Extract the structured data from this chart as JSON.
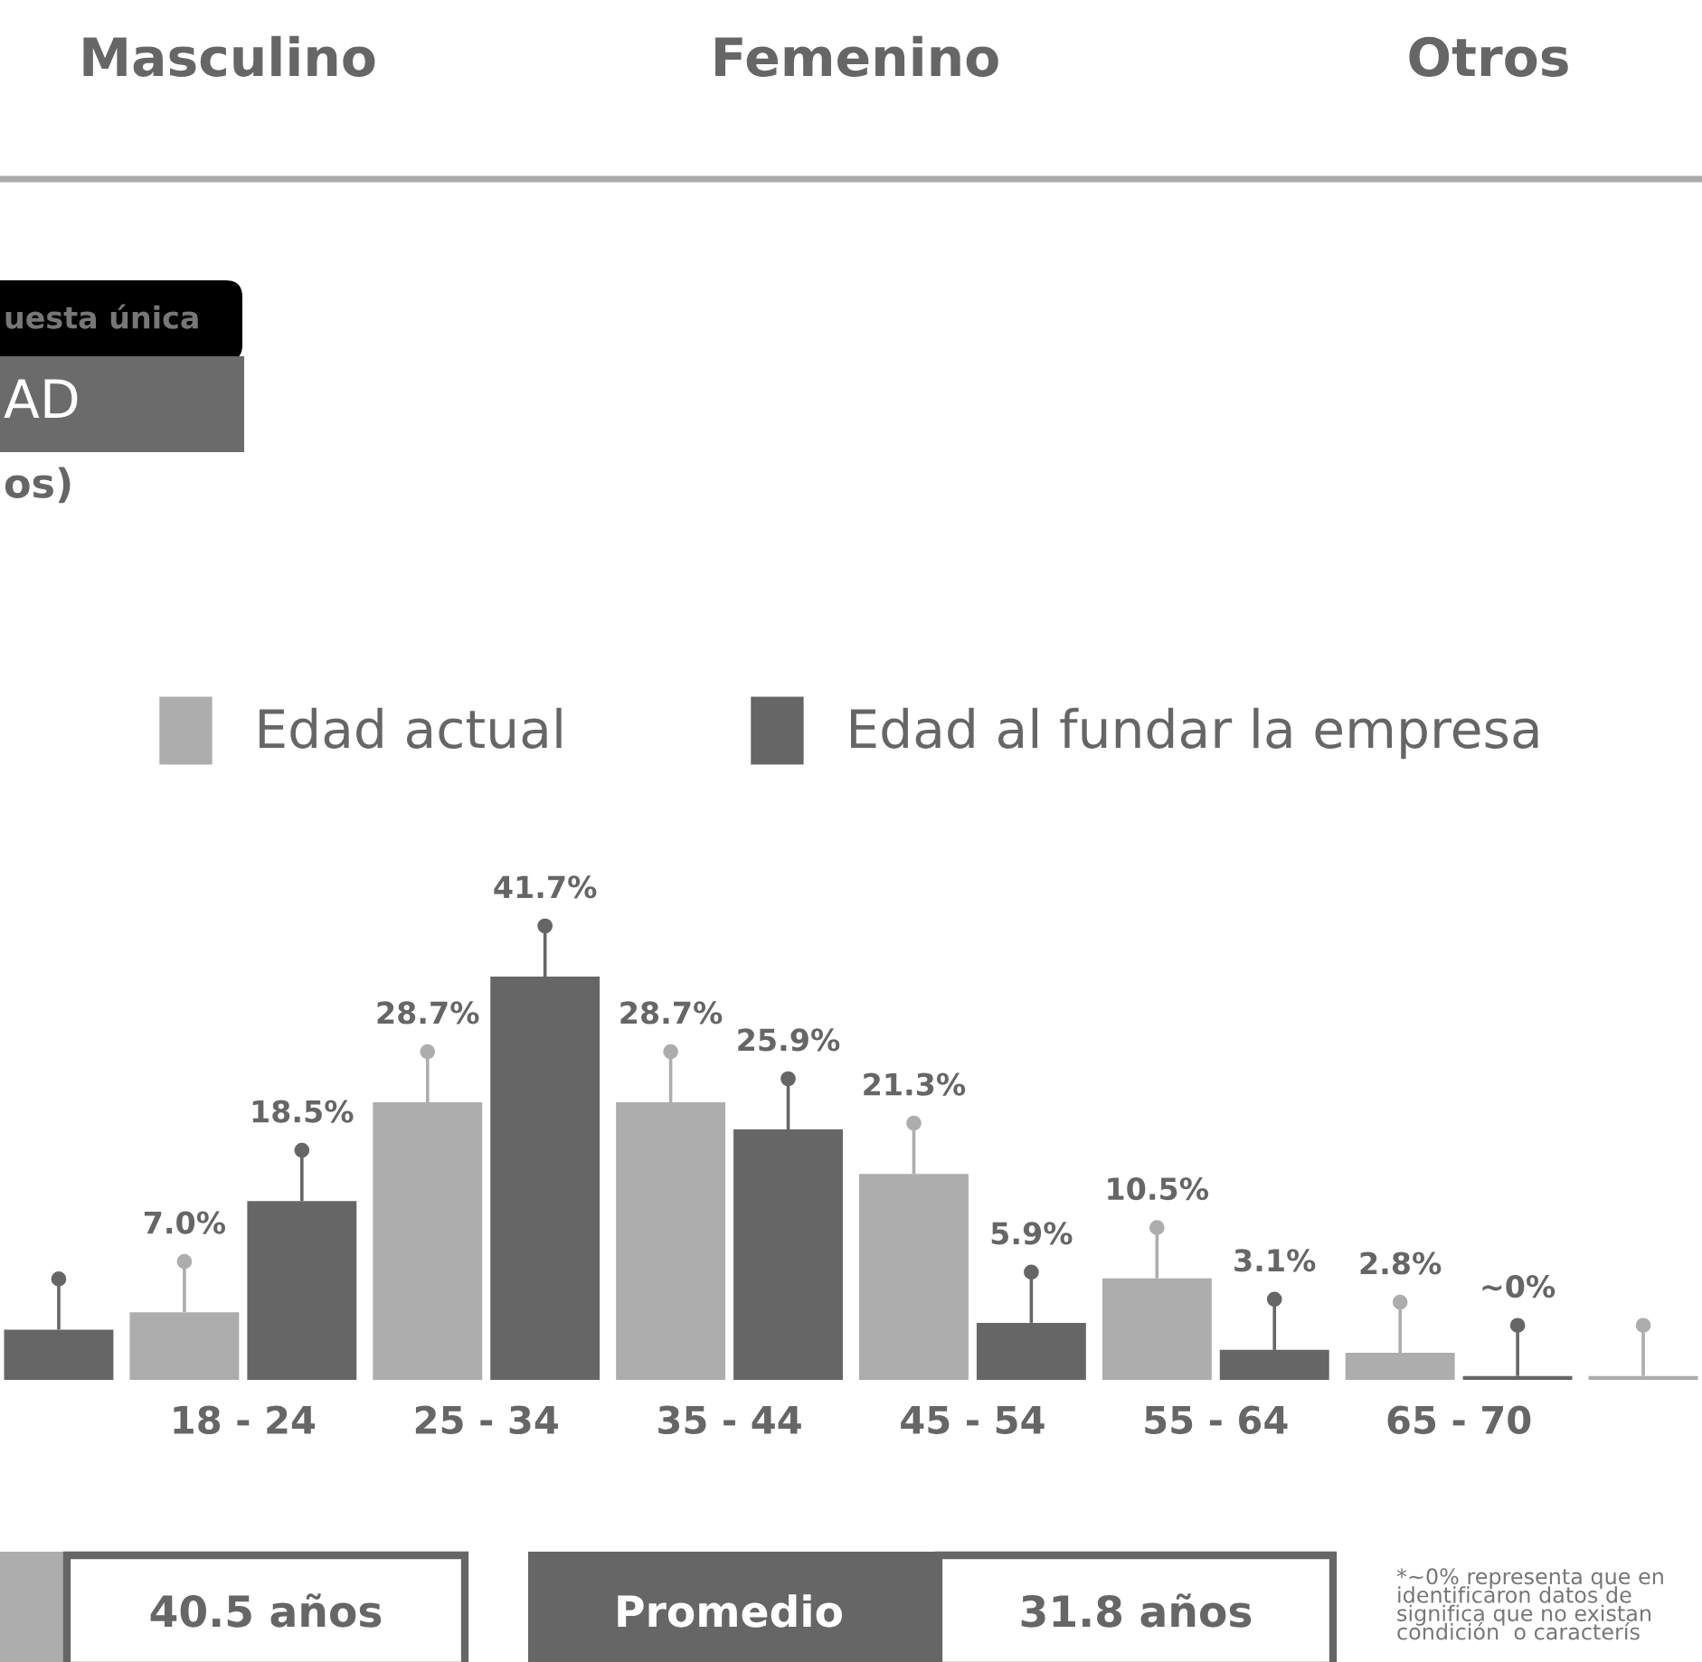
{
  "chart_data": {
    "type": "bar",
    "categories": [
      null,
      "18 - 24",
      "25 - 34",
      "35 - 44",
      "45 - 54",
      "55 - 64",
      "65 - 70",
      null
    ],
    "series": [
      {
        "name": "Edad actual",
        "color": "#adadad",
        "values": [
          null,
          7.0,
          28.7,
          28.7,
          21.3,
          10.5,
          2.8,
          0.4
        ],
        "value_labels": [
          null,
          "7.0%",
          "28.7%",
          "28.7%",
          "21.3%",
          "10.5%",
          "2.8%",
          null
        ]
      },
      {
        "name": "Edad al fundar la empresa",
        "color": "#666666",
        "values": [
          5.2,
          18.5,
          41.7,
          25.9,
          5.9,
          3.1,
          0.4,
          null
        ],
        "value_labels": [
          null,
          "18.5%",
          "41.7%",
          "25.9%",
          "5.9%",
          "3.1%",
          "~0%",
          null
        ]
      }
    ],
    "legend": "top",
    "grid": false,
    "annotations": [
      "Masculino",
      "Femenino",
      "Otros",
      "uesta única",
      "AD",
      "os)",
      "40.5 años",
      "Promedio",
      "31.8 años",
      "*~0% representa que en\nidentificaron datos de\nsignifica que no existan\ncondición  o caracterís"
    ]
  }
}
